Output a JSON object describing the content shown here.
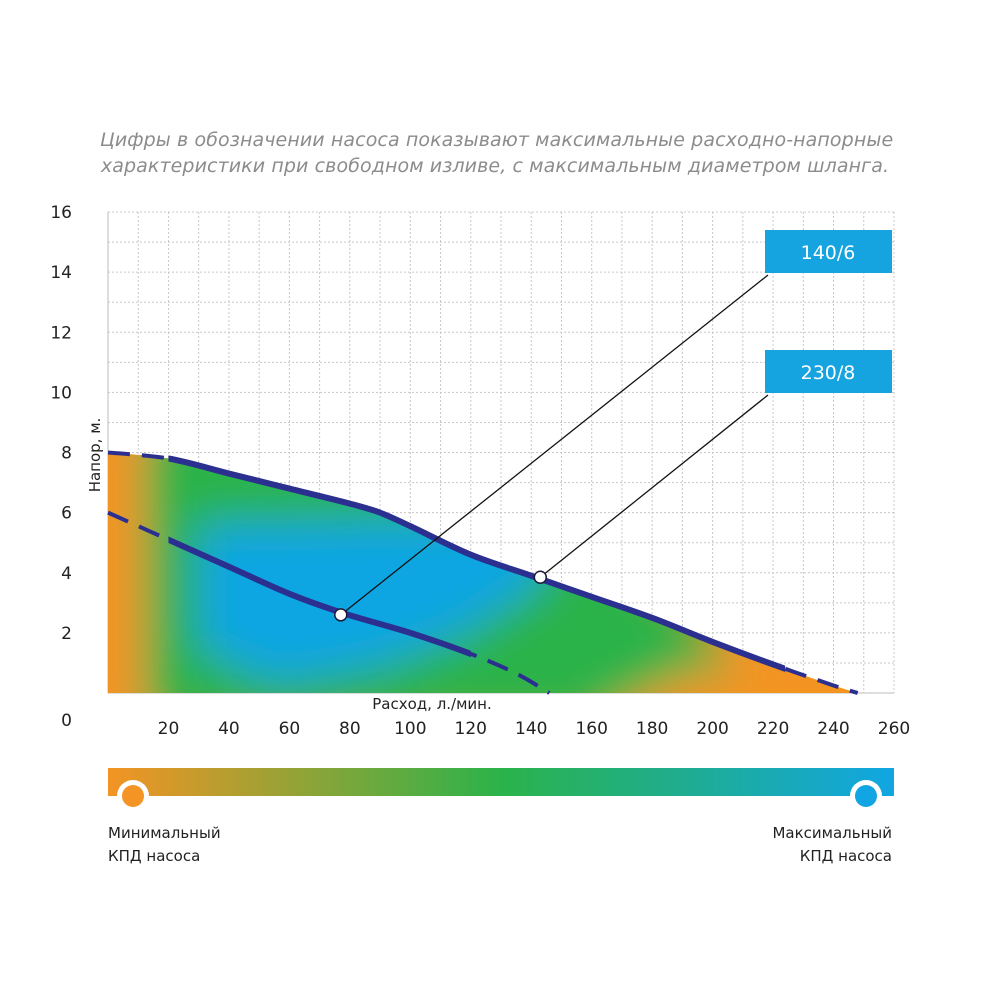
{
  "caption": {
    "line1": "Цифры в обозначении насоса показывают максимальные расходно-напорные",
    "line2": "характеристики при свободном изливе, с максимальным диаметром шланга."
  },
  "chart_data": {
    "type": "line",
    "xlabel": "Расход, л./мин.",
    "ylabel": "Напор, м.",
    "xlim": [
      0,
      260
    ],
    "ylim": [
      0,
      16
    ],
    "x_ticks": [
      "20",
      "40",
      "60",
      "80",
      "100",
      "120",
      "140",
      "160",
      "180",
      "200",
      "220",
      "240",
      "260"
    ],
    "y_ticks": [
      "0",
      "2",
      "4",
      "6",
      "8",
      "10",
      "12",
      "14",
      "16"
    ],
    "grid": true,
    "series": [
      {
        "name": "230/8",
        "color": "#2b2f8f",
        "points": [
          [
            0,
            8.0
          ],
          [
            20,
            7.8
          ],
          [
            40,
            7.3
          ],
          [
            60,
            6.8
          ],
          [
            80,
            6.3
          ],
          [
            90,
            6.0
          ],
          [
            100,
            5.55
          ],
          [
            120,
            4.6
          ],
          [
            140,
            3.9
          ],
          [
            160,
            3.2
          ],
          [
            180,
            2.5
          ],
          [
            200,
            1.7
          ],
          [
            220,
            0.95
          ],
          [
            240,
            0.25
          ],
          [
            248,
            0.0
          ]
        ],
        "solid_range": [
          20,
          224
        ],
        "marker": [
          143,
          3.85
        ],
        "tag": "230/8"
      },
      {
        "name": "140/6",
        "color": "#2b2f8f",
        "points": [
          [
            0,
            6.0
          ],
          [
            20,
            5.1
          ],
          [
            40,
            4.2
          ],
          [
            60,
            3.3
          ],
          [
            78,
            2.65
          ],
          [
            100,
            2.0
          ],
          [
            120,
            1.3
          ],
          [
            135,
            0.65
          ],
          [
            146,
            0.0
          ]
        ],
        "solid_range": [
          20,
          120
        ],
        "marker": [
          77,
          2.6
        ],
        "tag": "140/6"
      }
    ],
    "legend": {
      "min_label_line1": "Минимальный",
      "min_label_line2": "КПД насоса",
      "max_label_line1": "Максимальный",
      "max_label_line2": "КПД насоса",
      "min_color": "#f39424",
      "mid_color": "#2bb34a",
      "max_color": "#11a6e3"
    }
  }
}
